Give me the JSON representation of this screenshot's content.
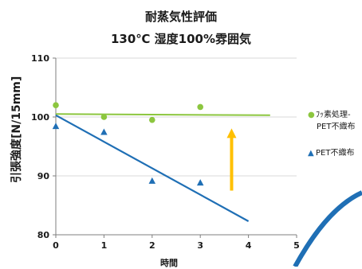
{
  "chart_data": {
    "type": "scatter",
    "title": "耐蒸気性評価",
    "subtitle": "130℃ 湿度100%雰囲気",
    "xlabel": "時間",
    "ylabel": "引張強度[N/15mm]",
    "xlim": [
      0,
      5
    ],
    "ylim": [
      80,
      110
    ],
    "xticks": [
      0,
      1,
      2,
      3,
      4,
      5
    ],
    "yticks": [
      80,
      90,
      100,
      110
    ],
    "grid": "horizontal",
    "legend_position": "right",
    "series": [
      {
        "name": "ﾌｯ素処理-PET不織布",
        "legend_lines": [
          "ﾌｯ素処理-",
          "PET不織布"
        ],
        "marker": "circle",
        "color": "#8cc63f",
        "x": [
          0,
          1,
          2,
          3
        ],
        "y": [
          102,
          100,
          99.5,
          101.7
        ],
        "trend": {
          "x": [
            0,
            4.45
          ],
          "y": [
            100.5,
            100.3
          ],
          "color": "#8cc63f"
        }
      },
      {
        "name": "PET不織布",
        "legend_lines": [
          "PET不織布"
        ],
        "marker": "triangle",
        "color": "#1f6fb5",
        "x": [
          0,
          1,
          2,
          3
        ],
        "y": [
          98.5,
          97.5,
          89.2,
          88.9
        ],
        "trend": {
          "x": [
            0,
            4
          ],
          "y": [
            100.3,
            82.3
          ],
          "color": "#1f6fb5"
        }
      }
    ],
    "annotation_arrow": {
      "x": 3.65,
      "y_from": 87.5,
      "y_to": 98.6,
      "color": "#ffc000"
    }
  }
}
